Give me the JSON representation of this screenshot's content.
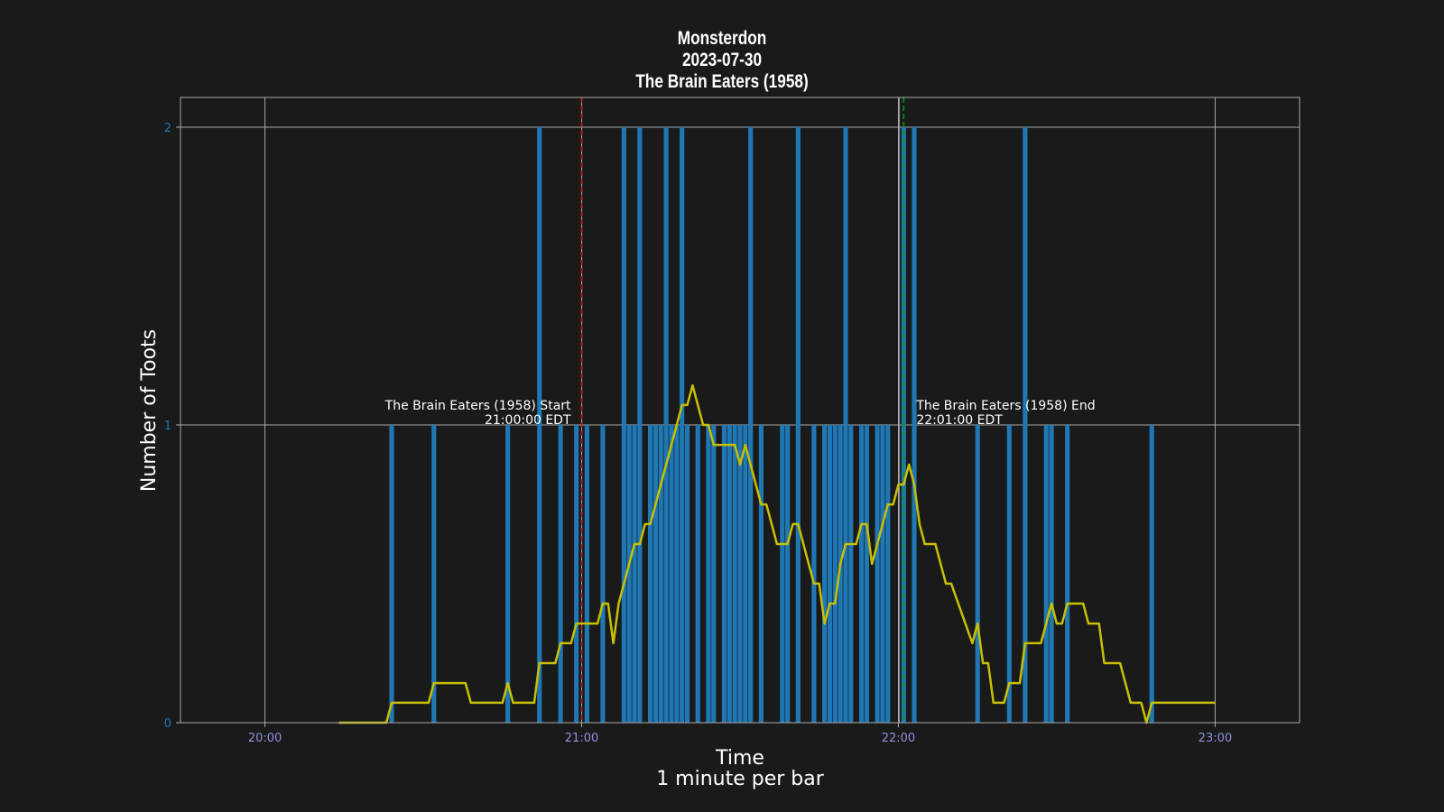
{
  "chart_data": {
    "type": "bar",
    "title_lines": [
      "Monsterdon",
      "2023-07-30",
      "The Brain Eaters (1958)"
    ],
    "xlabel": "Time",
    "xlabel_sub": "1 minute per bar",
    "ylabel": "Number of Toots",
    "x_range_minutes": [
      1184,
      1396
    ],
    "ylim": [
      0,
      2.1
    ],
    "x_ticks": [
      {
        "minute": 1200,
        "label": "20:00"
      },
      {
        "minute": 1260,
        "label": "21:00"
      },
      {
        "minute": 1320,
        "label": "22:00"
      },
      {
        "minute": 1380,
        "label": "23:00"
      }
    ],
    "y_ticks": [
      0,
      1,
      2
    ],
    "grid": true,
    "bar_color": "#1f77b4",
    "line_color": "#c8c000",
    "start_marker": {
      "minute": 1260,
      "color": "#e02020",
      "label": "The Brain Eaters (1958) Start",
      "time_label": "21:00:00 EDT"
    },
    "end_marker": {
      "minute": 1321,
      "color": "#00a000",
      "label": "The Brain Eaters (1958) End",
      "time_label": "22:01:00 EDT"
    },
    "bars": [
      {
        "minute": 1224,
        "value": 1
      },
      {
        "minute": 1232,
        "value": 1
      },
      {
        "minute": 1246,
        "value": 1
      },
      {
        "minute": 1252,
        "value": 2
      },
      {
        "minute": 1256,
        "value": 1
      },
      {
        "minute": 1259,
        "value": 1
      },
      {
        "minute": 1261,
        "value": 1
      },
      {
        "minute": 1264,
        "value": 1
      },
      {
        "minute": 1268,
        "value": 2
      },
      {
        "minute": 1269,
        "value": 1
      },
      {
        "minute": 1270,
        "value": 1
      },
      {
        "minute": 1271,
        "value": 2
      },
      {
        "minute": 1273,
        "value": 1
      },
      {
        "minute": 1274,
        "value": 1
      },
      {
        "minute": 1275,
        "value": 1
      },
      {
        "minute": 1276,
        "value": 2
      },
      {
        "minute": 1277,
        "value": 1
      },
      {
        "minute": 1278,
        "value": 1
      },
      {
        "minute": 1279,
        "value": 2
      },
      {
        "minute": 1280,
        "value": 1
      },
      {
        "minute": 1282,
        "value": 1
      },
      {
        "minute": 1284,
        "value": 1
      },
      {
        "minute": 1285,
        "value": 1
      },
      {
        "minute": 1287,
        "value": 1
      },
      {
        "minute": 1288,
        "value": 1
      },
      {
        "minute": 1289,
        "value": 1
      },
      {
        "minute": 1290,
        "value": 1
      },
      {
        "minute": 1291,
        "value": 1
      },
      {
        "minute": 1292,
        "value": 2
      },
      {
        "minute": 1294,
        "value": 1
      },
      {
        "minute": 1298,
        "value": 1
      },
      {
        "minute": 1299,
        "value": 1
      },
      {
        "minute": 1301,
        "value": 2
      },
      {
        "minute": 1304,
        "value": 1
      },
      {
        "minute": 1306,
        "value": 1
      },
      {
        "minute": 1307,
        "value": 1
      },
      {
        "minute": 1308,
        "value": 1
      },
      {
        "minute": 1309,
        "value": 1
      },
      {
        "minute": 1310,
        "value": 2
      },
      {
        "minute": 1311,
        "value": 1
      },
      {
        "minute": 1313,
        "value": 1
      },
      {
        "minute": 1314,
        "value": 1
      },
      {
        "minute": 1316,
        "value": 1
      },
      {
        "minute": 1317,
        "value": 1
      },
      {
        "minute": 1318,
        "value": 1
      },
      {
        "minute": 1321,
        "value": 2
      },
      {
        "minute": 1323,
        "value": 2
      },
      {
        "minute": 1335,
        "value": 1
      },
      {
        "minute": 1341,
        "value": 1
      },
      {
        "minute": 1344,
        "value": 2
      },
      {
        "minute": 1348,
        "value": 1
      },
      {
        "minute": 1349,
        "value": 1
      },
      {
        "minute": 1352,
        "value": 1
      },
      {
        "minute": 1368,
        "value": 1
      }
    ],
    "line": [
      [
        1214,
        0
      ],
      [
        1223,
        0
      ],
      [
        1224,
        0.067
      ],
      [
        1231,
        0.067
      ],
      [
        1232,
        0.133
      ],
      [
        1238,
        0.133
      ],
      [
        1239,
        0.067
      ],
      [
        1245,
        0.067
      ],
      [
        1246,
        0.133
      ],
      [
        1247,
        0.067
      ],
      [
        1251,
        0.067
      ],
      [
        1252,
        0.2
      ],
      [
        1255,
        0.2
      ],
      [
        1256,
        0.267
      ],
      [
        1258,
        0.267
      ],
      [
        1259,
        0.333
      ],
      [
        1263,
        0.333
      ],
      [
        1264,
        0.4
      ],
      [
        1265,
        0.4
      ],
      [
        1266,
        0.267
      ],
      [
        1267,
        0.4
      ],
      [
        1270,
        0.6
      ],
      [
        1271,
        0.6
      ],
      [
        1272,
        0.667
      ],
      [
        1273,
        0.667
      ],
      [
        1279,
        1.067
      ],
      [
        1280,
        1.067
      ],
      [
        1281,
        1.133
      ],
      [
        1283,
        1.0
      ],
      [
        1284,
        1.0
      ],
      [
        1285,
        0.933
      ],
      [
        1289,
        0.933
      ],
      [
        1290,
        0.867
      ],
      [
        1291,
        0.933
      ],
      [
        1294,
        0.733
      ],
      [
        1295,
        0.733
      ],
      [
        1297,
        0.6
      ],
      [
        1299,
        0.6
      ],
      [
        1300,
        0.667
      ],
      [
        1301,
        0.667
      ],
      [
        1304,
        0.467
      ],
      [
        1305,
        0.467
      ],
      [
        1306,
        0.333
      ],
      [
        1307,
        0.4
      ],
      [
        1308,
        0.4
      ],
      [
        1309,
        0.533
      ],
      [
        1310,
        0.6
      ],
      [
        1312,
        0.6
      ],
      [
        1313,
        0.667
      ],
      [
        1314,
        0.667
      ],
      [
        1315,
        0.533
      ],
      [
        1318,
        0.733
      ],
      [
        1319,
        0.733
      ],
      [
        1320,
        0.8
      ],
      [
        1321,
        0.8
      ],
      [
        1322,
        0.867
      ],
      [
        1323,
        0.8
      ],
      [
        1324,
        0.667
      ],
      [
        1325,
        0.6
      ],
      [
        1327,
        0.6
      ],
      [
        1329,
        0.467
      ],
      [
        1330,
        0.467
      ],
      [
        1334,
        0.267
      ],
      [
        1335,
        0.333
      ],
      [
        1336,
        0.2
      ],
      [
        1337,
        0.2
      ],
      [
        1338,
        0.067
      ],
      [
        1340,
        0.067
      ],
      [
        1341,
        0.133
      ],
      [
        1343,
        0.133
      ],
      [
        1344,
        0.267
      ],
      [
        1347,
        0.267
      ],
      [
        1349,
        0.4
      ],
      [
        1350,
        0.333
      ],
      [
        1351,
        0.333
      ],
      [
        1352,
        0.4
      ],
      [
        1355,
        0.4
      ],
      [
        1356,
        0.333
      ],
      [
        1358,
        0.333
      ],
      [
        1359,
        0.2
      ],
      [
        1362,
        0.2
      ],
      [
        1364,
        0.067
      ],
      [
        1366,
        0.067
      ],
      [
        1367,
        0
      ],
      [
        1368,
        0.067
      ],
      [
        1380,
        0.067
      ]
    ]
  }
}
